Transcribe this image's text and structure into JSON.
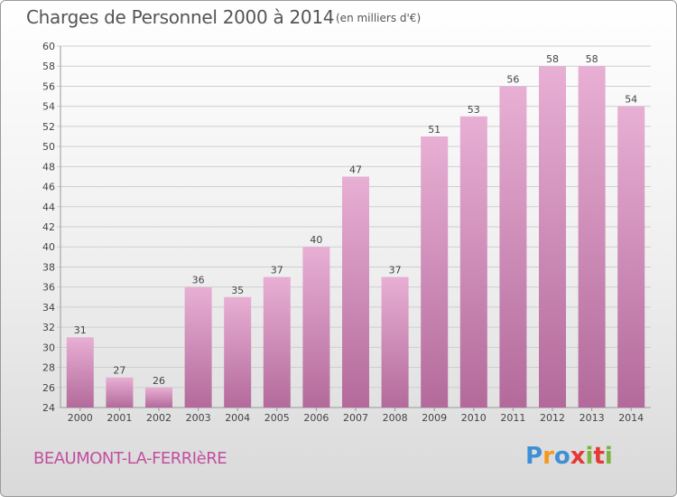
{
  "header": {
    "title": "Charges de Personnel 2000 à 2014",
    "subtitle": "(en milliers d'€)"
  },
  "footer": {
    "place": "BEAUMONT-LA-FERRIèRE",
    "logo": "Proxiti"
  },
  "colors": {
    "bar_top": "#e8afd4",
    "bar_bottom": "#b36a9b",
    "place_text": "#c14fa0",
    "logo_letters": [
      "#3f8fd6",
      "#f39a1c",
      "#3f8fd6",
      "#e53935",
      "#7cb342",
      "#e53935",
      "#7cb342"
    ]
  },
  "chart_data": {
    "type": "bar",
    "categories": [
      "2000",
      "2001",
      "2002",
      "2003",
      "2004",
      "2005",
      "2006",
      "2007",
      "2008",
      "2009",
      "2010",
      "2011",
      "2012",
      "2013",
      "2014"
    ],
    "values": [
      31,
      27,
      26,
      36,
      35,
      37,
      40,
      47,
      37,
      51,
      53,
      56,
      58,
      58,
      54
    ],
    "ylim": [
      24,
      60
    ],
    "yticks": [
      24,
      26,
      28,
      30,
      32,
      34,
      36,
      38,
      40,
      42,
      44,
      46,
      48,
      50,
      52,
      54,
      56,
      58,
      60
    ],
    "grid": true,
    "data_labels": true
  }
}
